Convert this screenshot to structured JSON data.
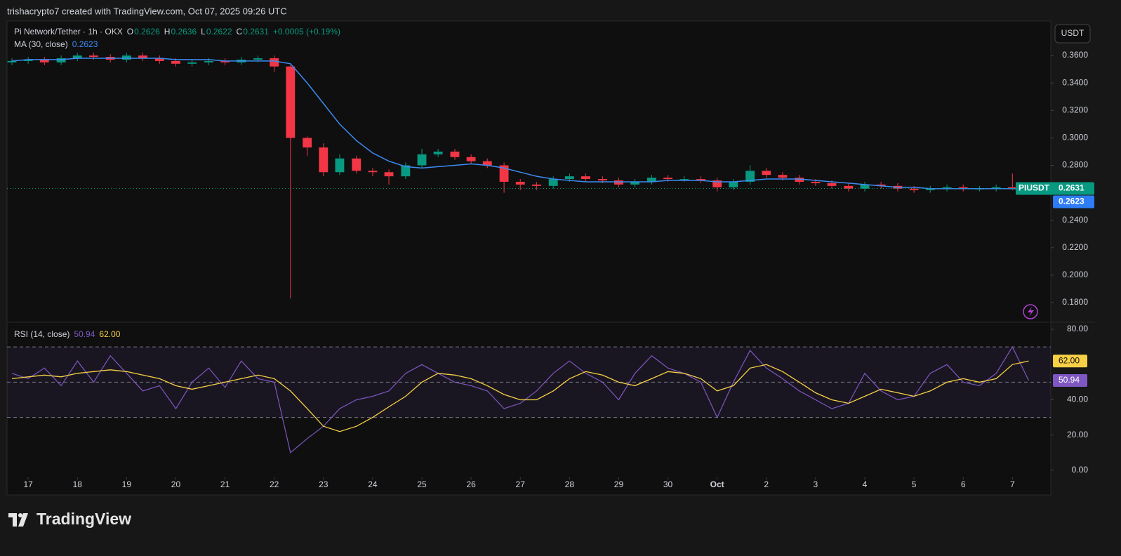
{
  "header": {
    "credit": "trishacrypto7 created with TradingView.com, Oct 07, 2025 09:26 UTC"
  },
  "footer": {
    "brand": "TradingView"
  },
  "chart_data": [
    {
      "type": "candlestick",
      "title": "Pi Network/Tether · 1h · OKX",
      "symbol": "PIUSDT",
      "currency": "USDT",
      "ohlc_letters": [
        "O",
        "H",
        "L",
        "C"
      ],
      "change": "+0.0005 (+0.19%)",
      "up_color": "#089981",
      "down_color": "#f23645",
      "x": [
        -0.33,
        0,
        0.33,
        0.67,
        1,
        1.33,
        1.67,
        2,
        2.33,
        2.67,
        3,
        3.33,
        3.67,
        4,
        4.33,
        4.67,
        5,
        5.33,
        5.67,
        6,
        6.33,
        6.67,
        7,
        7.33,
        7.67,
        8,
        8.33,
        8.67,
        9,
        9.33,
        9.67,
        10,
        10.33,
        10.67,
        11,
        11.33,
        11.67,
        12,
        12.33,
        12.67,
        13,
        13.33,
        13.67,
        14,
        14.33,
        14.67,
        15,
        15.33,
        15.67,
        16,
        16.33,
        16.67,
        17,
        17.33,
        17.67,
        18,
        18.33,
        18.67,
        19,
        19.33,
        19.67,
        20,
        20.33
      ],
      "open": [
        0.355,
        0.356,
        0.357,
        0.355,
        0.358,
        0.36,
        0.359,
        0.357,
        0.36,
        0.358,
        0.356,
        0.354,
        0.355,
        0.356,
        0.355,
        0.357,
        0.358,
        0.352,
        0.3,
        0.293,
        0.275,
        0.285,
        0.276,
        0.275,
        0.272,
        0.28,
        0.288,
        0.29,
        0.286,
        0.283,
        0.28,
        0.268,
        0.266,
        0.265,
        0.27,
        0.272,
        0.27,
        0.269,
        0.266,
        0.268,
        0.271,
        0.27,
        0.27,
        0.269,
        0.264,
        0.268,
        0.276,
        0.273,
        0.271,
        0.268,
        0.267,
        0.265,
        0.263,
        0.266,
        0.265,
        0.263,
        0.262,
        0.263,
        0.264,
        0.263,
        0.263,
        0.264,
        0.2626
      ],
      "high": [
        0.358,
        0.359,
        0.359,
        0.36,
        0.362,
        0.362,
        0.361,
        0.362,
        0.362,
        0.36,
        0.358,
        0.357,
        0.358,
        0.358,
        0.359,
        0.36,
        0.36,
        0.353,
        0.301,
        0.296,
        0.288,
        0.287,
        0.278,
        0.277,
        0.282,
        0.292,
        0.292,
        0.292,
        0.288,
        0.285,
        0.282,
        0.27,
        0.268,
        0.272,
        0.274,
        0.274,
        0.272,
        0.271,
        0.27,
        0.273,
        0.273,
        0.272,
        0.272,
        0.271,
        0.27,
        0.28,
        0.278,
        0.275,
        0.273,
        0.27,
        0.269,
        0.267,
        0.268,
        0.268,
        0.267,
        0.265,
        0.265,
        0.266,
        0.266,
        0.265,
        0.266,
        0.274,
        0.2636
      ],
      "low": [
        0.353,
        0.354,
        0.353,
        0.353,
        0.356,
        0.357,
        0.355,
        0.355,
        0.356,
        0.354,
        0.352,
        0.352,
        0.353,
        0.353,
        0.353,
        0.355,
        0.348,
        0.183,
        0.287,
        0.272,
        0.273,
        0.274,
        0.272,
        0.266,
        0.27,
        0.278,
        0.286,
        0.284,
        0.281,
        0.278,
        0.26,
        0.262,
        0.262,
        0.263,
        0.268,
        0.268,
        0.267,
        0.264,
        0.264,
        0.266,
        0.268,
        0.268,
        0.267,
        0.261,
        0.262,
        0.266,
        0.271,
        0.269,
        0.266,
        0.265,
        0.263,
        0.261,
        0.261,
        0.263,
        0.261,
        0.26,
        0.26,
        0.261,
        0.261,
        0.261,
        0.261,
        0.262,
        0.2622
      ],
      "close": [
        0.356,
        0.357,
        0.355,
        0.358,
        0.36,
        0.359,
        0.357,
        0.36,
        0.358,
        0.356,
        0.354,
        0.355,
        0.356,
        0.355,
        0.357,
        0.358,
        0.352,
        0.3,
        0.293,
        0.275,
        0.285,
        0.276,
        0.275,
        0.272,
        0.28,
        0.288,
        0.29,
        0.286,
        0.283,
        0.28,
        0.268,
        0.266,
        0.265,
        0.27,
        0.272,
        0.27,
        0.269,
        0.266,
        0.268,
        0.271,
        0.27,
        0.27,
        0.269,
        0.264,
        0.268,
        0.276,
        0.273,
        0.271,
        0.268,
        0.267,
        0.265,
        0.263,
        0.266,
        0.265,
        0.263,
        0.262,
        0.263,
        0.264,
        0.263,
        0.263,
        0.264,
        0.2626,
        0.2631
      ],
      "ma": {
        "name": "MA (30, close)",
        "color": "#3d8bf2",
        "values": [
          0.356,
          0.357,
          0.357,
          0.357,
          0.358,
          0.358,
          0.358,
          0.358,
          0.358,
          0.358,
          0.357,
          0.357,
          0.357,
          0.356,
          0.356,
          0.356,
          0.356,
          0.354,
          0.34,
          0.325,
          0.31,
          0.298,
          0.289,
          0.283,
          0.279,
          0.278,
          0.279,
          0.28,
          0.281,
          0.28,
          0.278,
          0.275,
          0.272,
          0.27,
          0.269,
          0.268,
          0.268,
          0.268,
          0.268,
          0.268,
          0.269,
          0.269,
          0.269,
          0.268,
          0.268,
          0.269,
          0.27,
          0.27,
          0.27,
          0.269,
          0.268,
          0.267,
          0.266,
          0.265,
          0.264,
          0.264,
          0.263,
          0.263,
          0.263,
          0.263,
          0.263,
          0.263,
          0.2623
        ]
      },
      "xlim": [
        -0.43,
        20.78
      ],
      "xticks": [
        {
          "value": 0,
          "label": "17"
        },
        {
          "value": 1,
          "label": "18"
        },
        {
          "value": 2,
          "label": "19"
        },
        {
          "value": 3,
          "label": "20"
        },
        {
          "value": 4,
          "label": "21"
        },
        {
          "value": 5,
          "label": "22"
        },
        {
          "value": 6,
          "label": "23"
        },
        {
          "value": 7,
          "label": "24"
        },
        {
          "value": 8,
          "label": "25"
        },
        {
          "value": 9,
          "label": "26"
        },
        {
          "value": 10,
          "label": "27"
        },
        {
          "value": 11,
          "label": "28"
        },
        {
          "value": 12,
          "label": "29"
        },
        {
          "value": 13,
          "label": "30"
        },
        {
          "value": 14,
          "label": "Oct"
        },
        {
          "value": 15,
          "label": "2"
        },
        {
          "value": 16,
          "label": "3"
        },
        {
          "value": 17,
          "label": "4"
        },
        {
          "value": 18,
          "label": "5"
        },
        {
          "value": 19,
          "label": "6"
        },
        {
          "value": 20,
          "label": "7"
        }
      ],
      "ylim": [
        0.1662,
        0.3851
      ],
      "yticks": [
        {
          "value": 0.36,
          "label": "0.3600"
        },
        {
          "value": 0.34,
          "label": "0.3400"
        },
        {
          "value": 0.32,
          "label": "0.3200"
        },
        {
          "value": 0.3,
          "label": "0.3000"
        },
        {
          "value": 0.28,
          "label": "0.2800"
        },
        {
          "value": 0.24,
          "label": "0.2400"
        },
        {
          "value": 0.22,
          "label": "0.2200"
        },
        {
          "value": 0.2,
          "label": "0.2000"
        },
        {
          "value": 0.18,
          "label": "0.1800"
        }
      ]
    },
    {
      "type": "rsi",
      "name": "RSI (14, close)",
      "color": "#7e57c2",
      "ma_color": "#f7d046",
      "values": [
        55,
        52,
        58,
        48,
        62,
        50,
        65,
        55,
        45,
        48,
        35,
        50,
        58,
        47,
        62,
        52,
        50,
        10,
        18,
        25,
        35,
        40,
        42,
        45,
        55,
        60,
        55,
        50,
        48,
        45,
        35,
        38,
        45,
        55,
        62,
        55,
        50,
        40,
        55,
        65,
        58,
        55,
        50,
        30,
        50,
        68,
        58,
        52,
        45,
        40,
        35,
        38,
        55,
        45,
        40,
        42,
        55,
        60,
        50,
        48,
        55,
        70,
        50.94
      ],
      "ma_values": [
        52,
        53,
        54,
        53,
        55,
        56,
        57,
        56,
        54,
        52,
        48,
        46,
        48,
        50,
        52,
        54,
        52,
        45,
        35,
        25,
        22,
        25,
        30,
        36,
        42,
        50,
        55,
        54,
        52,
        48,
        43,
        40,
        40,
        45,
        52,
        56,
        54,
        50,
        48,
        52,
        56,
        55,
        52,
        45,
        48,
        58,
        60,
        56,
        50,
        44,
        40,
        38,
        42,
        46,
        44,
        42,
        45,
        50,
        52,
        50,
        52,
        60,
        62
      ],
      "ma_value_label": "62.00",
      "bands": [
        30,
        50,
        70
      ],
      "ylim": [
        -4,
        83.6
      ],
      "yticks": [
        {
          "value": 80,
          "label": "80.00"
        },
        {
          "value": 40,
          "label": "40.00"
        },
        {
          "value": 20,
          "label": "20.00"
        },
        {
          "value": 0,
          "label": "0.00"
        }
      ]
    }
  ]
}
